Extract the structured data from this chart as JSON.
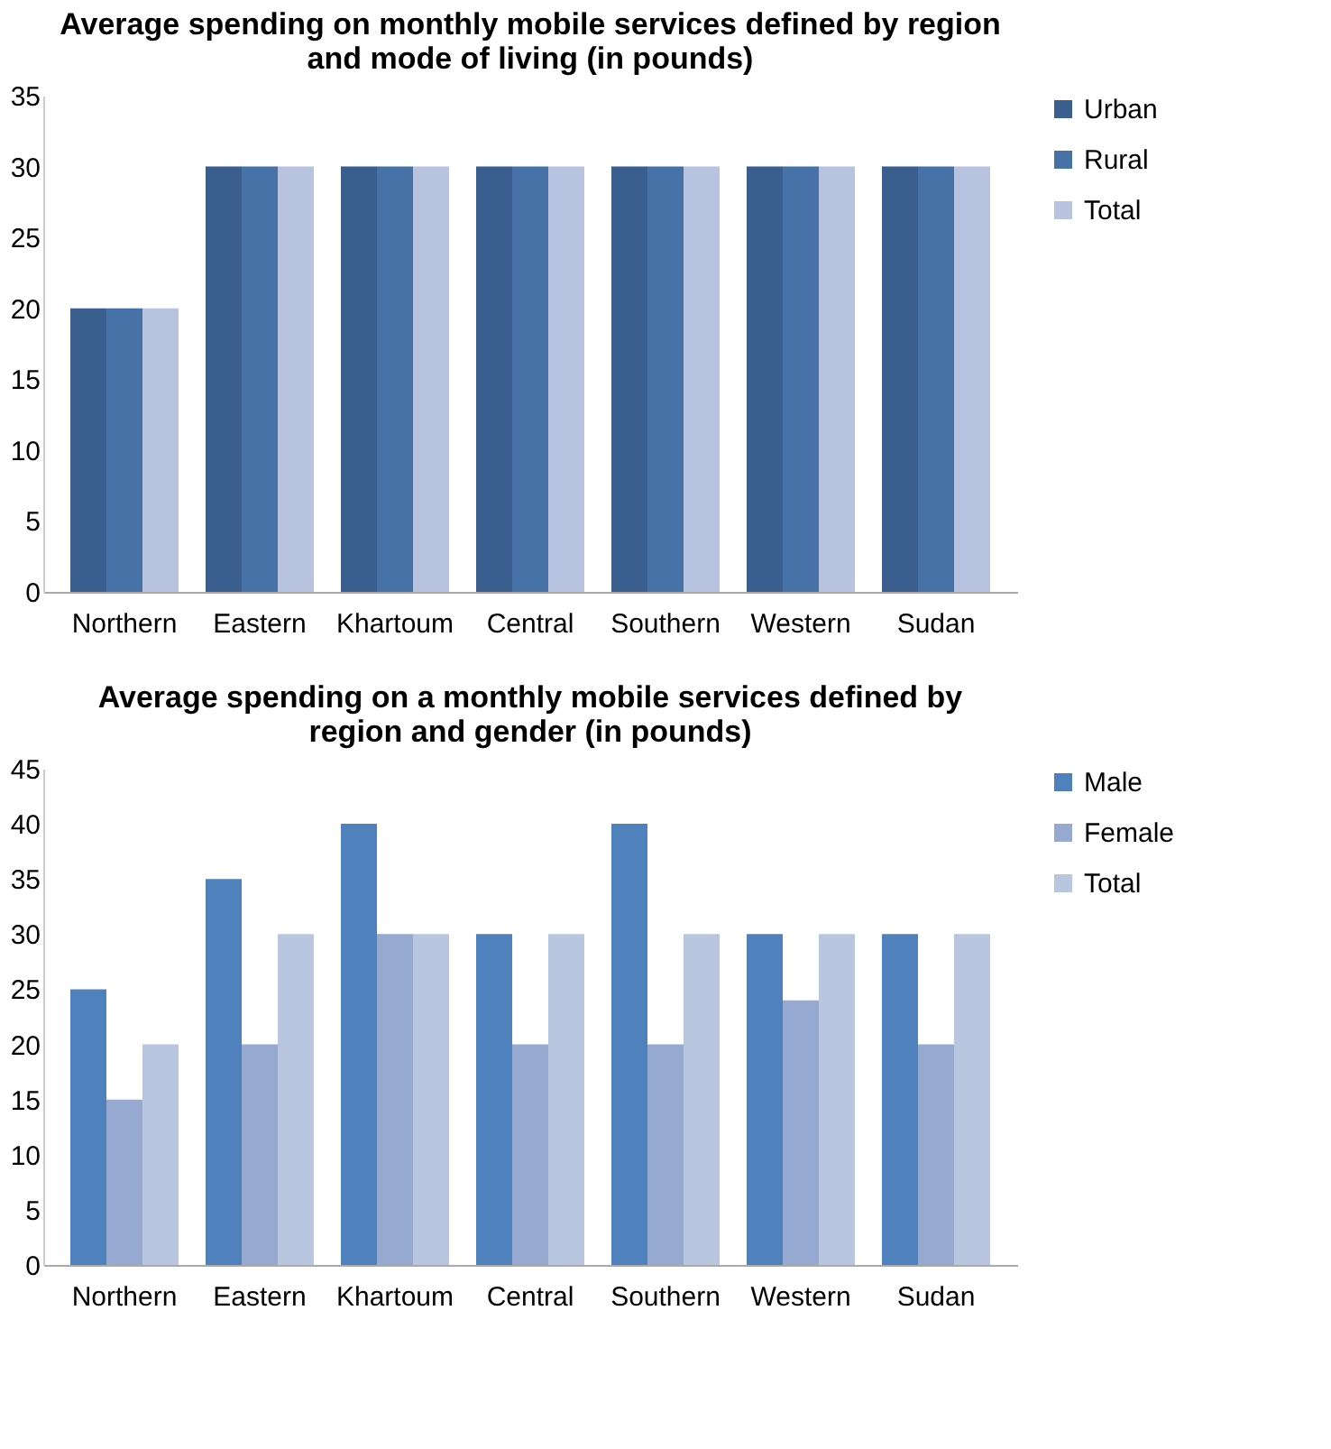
{
  "chart_data": [
    {
      "type": "bar",
      "title": "Average spending on monthly mobile services defined by region and mode of living (in pounds)",
      "categories": [
        "Northern",
        "Eastern",
        "Khartoum",
        "Central",
        "Southern",
        "Western",
        "Sudan"
      ],
      "series": [
        {
          "name": "Urban",
          "color": "#3a5f8f",
          "values": [
            20,
            30,
            30,
            30,
            30,
            30,
            30
          ]
        },
        {
          "name": "Rural",
          "color": "#4672a8",
          "values": [
            20,
            30,
            30,
            30,
            30,
            30,
            30
          ]
        },
        {
          "name": "Total",
          "color": "#b8c4df",
          "values": [
            20,
            30,
            30,
            30,
            30,
            30,
            30
          ]
        }
      ],
      "ylim": [
        0,
        35
      ],
      "yticks": [
        0,
        5,
        10,
        15,
        20,
        25,
        30,
        35
      ],
      "grid": false,
      "legend": "top right"
    },
    {
      "type": "bar",
      "title": "Average spending on a monthly mobile services defined by region and gender (in pounds)",
      "categories": [
        "Northern",
        "Eastern",
        "Khartoum",
        "Central",
        "Southern",
        "Western",
        "Sudan"
      ],
      "series": [
        {
          "name": "Male",
          "color": "#4f81bd",
          "values": [
            25,
            35,
            40,
            30,
            40,
            30,
            30
          ]
        },
        {
          "name": "Female",
          "color": "#95a9d1",
          "values": [
            15,
            20,
            30,
            20,
            20,
            24,
            20
          ]
        },
        {
          "name": "Total",
          "color": "#b9c6e0",
          "values": [
            20,
            30,
            30,
            30,
            30,
            30,
            30
          ]
        }
      ],
      "ylim": [
        0,
        45
      ],
      "yticks": [
        0,
        5,
        10,
        15,
        20,
        25,
        30,
        35,
        40,
        45
      ],
      "grid": false,
      "legend": "top right"
    }
  ]
}
